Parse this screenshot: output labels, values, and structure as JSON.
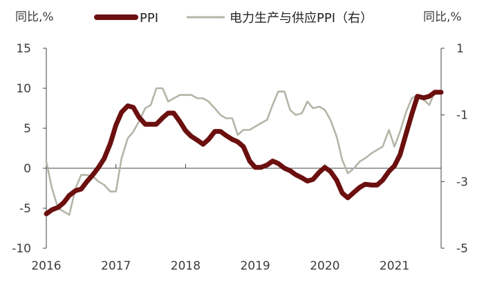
{
  "chart_data": {
    "type": "line",
    "left_unit": "同比,%",
    "right_unit": "同比,%",
    "left_ylim": [
      -10,
      15
    ],
    "left_yticks": [
      "15",
      "10",
      "5",
      "0",
      "-5",
      "-10"
    ],
    "right_ylim": [
      -5,
      1
    ],
    "right_yticks": [
      "1",
      "-1",
      "-3",
      "-5"
    ],
    "x_range": [
      2016.0,
      2021.67
    ],
    "xticks": [
      "2016",
      "2017",
      "2018",
      "2019",
      "2020",
      "2021"
    ],
    "grid": false,
    "legend_position": "top",
    "series": [
      {
        "name": "PPI",
        "axis": "left",
        "color": "#6b0f0f",
        "x": [
          2016.0,
          2016.08,
          2016.17,
          2016.25,
          2016.33,
          2016.42,
          2016.5,
          2016.58,
          2016.67,
          2016.75,
          2016.83,
          2016.92,
          2017.0,
          2017.08,
          2017.17,
          2017.25,
          2017.33,
          2017.42,
          2017.5,
          2017.58,
          2017.67,
          2017.75,
          2017.83,
          2017.92,
          2018.0,
          2018.08,
          2018.17,
          2018.25,
          2018.33,
          2018.42,
          2018.5,
          2018.58,
          2018.67,
          2018.75,
          2018.83,
          2018.92,
          2019.0,
          2019.08,
          2019.17,
          2019.25,
          2019.33,
          2019.42,
          2019.5,
          2019.58,
          2019.67,
          2019.75,
          2019.83,
          2019.92,
          2020.0,
          2020.08,
          2020.17,
          2020.25,
          2020.33,
          2020.42,
          2020.5,
          2020.58,
          2020.67,
          2020.75,
          2020.83,
          2020.92,
          2021.0,
          2021.08,
          2021.17,
          2021.25,
          2021.33,
          2021.42,
          2021.5,
          2021.58,
          2021.67
        ],
        "values": [
          -5.7,
          -5.2,
          -4.9,
          -4.3,
          -3.4,
          -2.8,
          -2.6,
          -1.7,
          -0.8,
          0.1,
          1.2,
          3.1,
          5.4,
          7.0,
          7.8,
          7.6,
          6.4,
          5.5,
          5.5,
          5.5,
          6.3,
          6.9,
          6.9,
          5.8,
          4.7,
          4.0,
          3.5,
          3.0,
          3.6,
          4.6,
          4.6,
          4.1,
          3.6,
          3.3,
          2.7,
          0.9,
          0.1,
          0.1,
          0.4,
          0.9,
          0.6,
          0.0,
          -0.3,
          -0.8,
          -1.2,
          -1.6,
          -1.4,
          -0.5,
          0.1,
          -0.4,
          -1.5,
          -3.1,
          -3.7,
          -3.0,
          -2.4,
          -2.0,
          -2.1,
          -2.1,
          -1.5,
          -0.4,
          0.3,
          1.7,
          4.4,
          6.8,
          9.0,
          8.8,
          9.0,
          9.5,
          9.5
        ]
      },
      {
        "name": "电力生产与供应PPI（右）",
        "axis": "right",
        "color": "#b3b5a6",
        "x": [
          2016.0,
          2016.08,
          2016.17,
          2016.25,
          2016.33,
          2016.42,
          2016.5,
          2016.58,
          2016.67,
          2016.75,
          2016.83,
          2016.92,
          2017.0,
          2017.08,
          2017.17,
          2017.25,
          2017.33,
          2017.42,
          2017.5,
          2017.58,
          2017.67,
          2017.75,
          2017.83,
          2017.92,
          2018.0,
          2018.08,
          2018.17,
          2018.25,
          2018.33,
          2018.42,
          2018.5,
          2018.58,
          2018.67,
          2018.75,
          2018.83,
          2018.92,
          2019.0,
          2019.08,
          2019.17,
          2019.25,
          2019.33,
          2019.42,
          2019.5,
          2019.58,
          2019.67,
          2019.75,
          2019.83,
          2019.92,
          2020.0,
          2020.08,
          2020.17,
          2020.25,
          2020.33,
          2020.42,
          2020.5,
          2020.58,
          2020.67,
          2020.75,
          2020.83,
          2020.92,
          2021.0,
          2021.08,
          2021.17,
          2021.25,
          2021.33,
          2021.42,
          2021.5,
          2021.58,
          2021.67
        ],
        "values": [
          -2.4,
          -3.2,
          -3.8,
          -3.9,
          -4.0,
          -3.2,
          -2.8,
          -2.8,
          -2.85,
          -3.0,
          -3.1,
          -3.3,
          -3.3,
          -2.3,
          -1.7,
          -1.5,
          -1.2,
          -0.8,
          -0.7,
          -0.2,
          -0.2,
          -0.6,
          -0.5,
          -0.4,
          -0.4,
          -0.4,
          -0.5,
          -0.5,
          -0.6,
          -0.8,
          -1.0,
          -1.1,
          -1.1,
          -1.6,
          -1.45,
          -1.45,
          -1.35,
          -1.25,
          -1.15,
          -0.7,
          -0.3,
          -0.3,
          -0.85,
          -1.0,
          -0.95,
          -0.6,
          -0.8,
          -0.75,
          -0.85,
          -1.15,
          -1.65,
          -2.35,
          -2.75,
          -2.6,
          -2.4,
          -2.3,
          -2.15,
          -2.05,
          -1.95,
          -1.45,
          -1.95,
          -1.5,
          -0.9,
          -0.5,
          -0.4,
          -0.55,
          -0.7,
          -0.3,
          -0.3
        ]
      }
    ]
  }
}
